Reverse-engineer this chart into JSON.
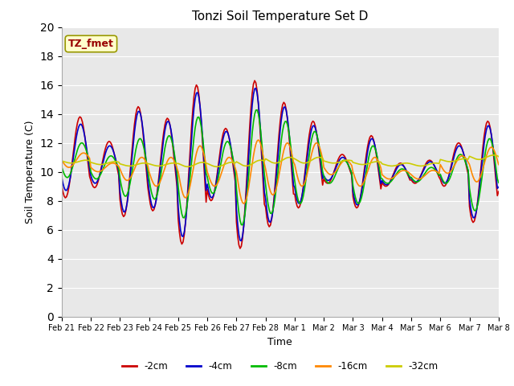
{
  "title": "Tonzi Soil Temperature Set D",
  "xlabel": "Time",
  "ylabel": "Soil Temperature (C)",
  "annotation": "TZ_fmet",
  "ylim": [
    0,
    20
  ],
  "yticks": [
    0,
    2,
    4,
    6,
    8,
    10,
    12,
    14,
    16,
    18,
    20
  ],
  "series": {
    "-2cm": {
      "color": "#cc0000",
      "lw": 1.2
    },
    "-4cm": {
      "color": "#0000cc",
      "lw": 1.2
    },
    "-8cm": {
      "color": "#00bb00",
      "lw": 1.2
    },
    "-16cm": {
      "color": "#ff8800",
      "lw": 1.2
    },
    "-32cm": {
      "color": "#cccc00",
      "lw": 1.2
    }
  },
  "xtick_labels": [
    "Feb 21",
    "Feb 22",
    "Feb 23",
    "Feb 24",
    "Feb 25",
    "Feb 26",
    "Feb 27",
    "Feb 28",
    "Mar 1",
    "Mar 2",
    "Mar 3",
    "Mar 4",
    "Mar 5",
    "Mar 6",
    "Mar 7",
    "Mar 8"
  ],
  "background_color": "#e8e8e8",
  "annotation_bg": "#ffffcc",
  "annotation_border": "#999900",
  "annotation_text_color": "#990000",
  "num_days": 15,
  "pts_per_day": 24
}
